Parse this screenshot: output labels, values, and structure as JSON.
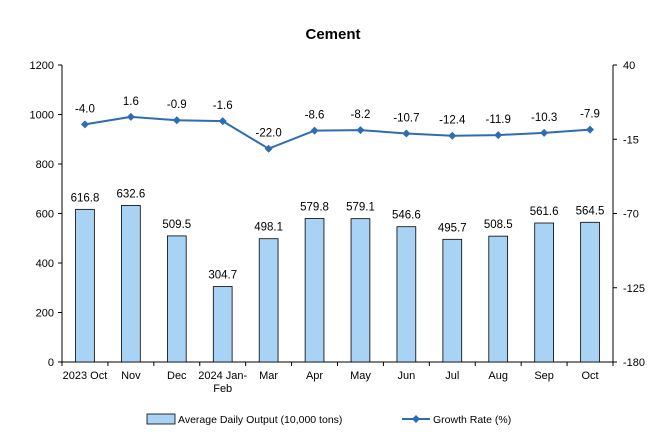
{
  "chart_data": {
    "type": "bar+line",
    "title": "Cement",
    "categories": [
      "2023 Oct",
      "Nov",
      "Dec",
      "2024 Jan-Feb",
      "Mar",
      "Apr",
      "May",
      "Jun",
      "Jul",
      "Aug",
      "Sep",
      "Oct"
    ],
    "series": [
      {
        "name": "Average Daily Output (10,000 tons)",
        "type": "bar",
        "axis": "left",
        "color": "#a9d3f5",
        "values": [
          616.8,
          632.6,
          509.5,
          304.7,
          498.1,
          579.8,
          579.1,
          546.6,
          495.7,
          508.5,
          561.6,
          564.5
        ],
        "labels": [
          "616.8",
          "632.6",
          "509.5",
          "304.7",
          "498.1",
          "579.8",
          "579.1",
          "546.6",
          "495.7",
          "508.5",
          "561.6",
          "564.5"
        ]
      },
      {
        "name": "Growth Rate (%)",
        "type": "line",
        "axis": "right",
        "color": "#2e6db4",
        "values": [
          -4.0,
          1.6,
          -0.9,
          -1.6,
          -22.0,
          -8.6,
          -8.2,
          -10.7,
          -12.4,
          -11.9,
          -10.3,
          -7.9
        ],
        "labels": [
          "-4.0",
          "1.6",
          "-0.9",
          "-1.6",
          "-22.0",
          "-8.6",
          "-8.2",
          "-10.7",
          "-12.4",
          "-11.9",
          "-10.3",
          "-7.9"
        ]
      }
    ],
    "left_axis": {
      "min": 0,
      "max": 1200,
      "ticks": [
        0,
        200,
        400,
        600,
        800,
        1000,
        1200
      ],
      "tick_labels": [
        "0",
        "200",
        "400",
        "600",
        "800",
        "1000",
        "1200"
      ]
    },
    "right_axis": {
      "min": -180,
      "max": 40,
      "ticks": [
        -180,
        -125,
        -70,
        -15,
        40
      ],
      "tick_labels": [
        "-180",
        "-125",
        "-70",
        "-15",
        "40"
      ]
    },
    "grid": false,
    "legend_position": "bottom"
  }
}
